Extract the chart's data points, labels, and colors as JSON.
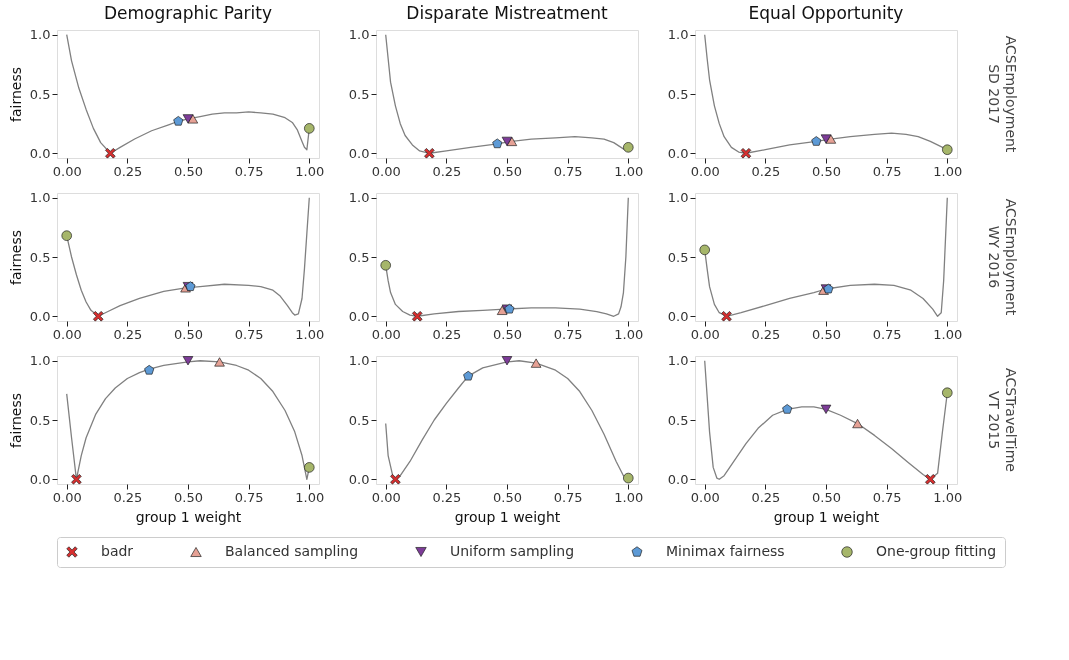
{
  "chart_data": [
    {
      "type": "line",
      "title": "Demographic Parity",
      "ylabel": "fairness",
      "xlim": [
        -0.04,
        1.04
      ],
      "ylim": [
        -0.04,
        1.04
      ],
      "xticks": [
        {
          "value": 0,
          "label": "0.00"
        },
        {
          "value": 0.25,
          "label": "0.25"
        },
        {
          "value": 0.5,
          "label": "0.50"
        },
        {
          "value": 0.75,
          "label": "0.75"
        },
        {
          "value": 1,
          "label": "1.00"
        }
      ],
      "yticks": [
        {
          "value": 0,
          "label": "0.0"
        },
        {
          "value": 0.5,
          "label": "0.5"
        },
        {
          "value": 1,
          "label": "1.0"
        }
      ],
      "legend": "bottom",
      "series": [
        {
          "color": "#808080",
          "x": [
            0,
            0.02,
            0.05,
            0.08,
            0.11,
            0.14,
            0.18,
            0.22,
            0.28,
            0.35,
            0.42,
            0.46,
            0.5,
            0.55,
            0.6,
            0.65,
            0.7,
            0.75,
            0.8,
            0.85,
            0.9,
            0.93,
            0.95,
            0.97,
            0.98,
            0.99,
            1.0
          ],
          "values": [
            1.0,
            0.78,
            0.55,
            0.37,
            0.21,
            0.09,
            0.0,
            0.05,
            0.12,
            0.19,
            0.24,
            0.27,
            0.29,
            0.31,
            0.33,
            0.34,
            0.34,
            0.35,
            0.34,
            0.33,
            0.3,
            0.26,
            0.2,
            0.1,
            0.05,
            0.03,
            0.21
          ]
        },
        {
          "name": "badr",
          "type": "scatter",
          "marker": "cross",
          "color": "#d62f2f",
          "x": [
            0.18
          ],
          "values": [
            0.0
          ]
        },
        {
          "name": "Balanced sampling",
          "type": "scatter",
          "marker": "triangle",
          "color": "#e6a195",
          "x": [
            0.52
          ],
          "values": [
            0.29
          ]
        },
        {
          "name": "Uniform sampling",
          "type": "scatter",
          "marker": "triangle-down",
          "color": "#7d3c98",
          "x": [
            0.5
          ],
          "values": [
            0.29
          ]
        },
        {
          "name": "Minimax fairness",
          "type": "scatter",
          "color": "#5d9ad6",
          "x": [
            0.46
          ],
          "values": [
            0.27
          ]
        },
        {
          "name": "One-group fitting",
          "type": "scatter",
          "marker": "circle",
          "color": "#a6b66a",
          "x": [
            1.0
          ],
          "values": [
            0.21
          ]
        }
      ]
    },
    {
      "type": "line",
      "title": "Disparate Mistreatment",
      "xlim": [
        -0.04,
        1.04
      ],
      "ylim": [
        -0.04,
        1.04
      ],
      "xticks": [
        {
          "value": 0,
          "label": "0.00"
        },
        {
          "value": 0.25,
          "label": "0.25"
        },
        {
          "value": 0.5,
          "label": "0.50"
        },
        {
          "value": 0.75,
          "label": "0.75"
        },
        {
          "value": 1,
          "label": "1.00"
        }
      ],
      "yticks": [
        {
          "value": 0,
          "label": "0.0"
        },
        {
          "value": 0.5,
          "label": "0.5"
        },
        {
          "value": 1,
          "label": "1.0"
        }
      ],
      "legend": "bottom",
      "series": [
        {
          "color": "#808080",
          "x": [
            0,
            0.01,
            0.02,
            0.04,
            0.06,
            0.08,
            0.11,
            0.14,
            0.18,
            0.25,
            0.35,
            0.46,
            0.52,
            0.6,
            0.7,
            0.78,
            0.85,
            0.9,
            0.94,
            0.97,
            0.985,
            1.0
          ],
          "values": [
            1.0,
            0.8,
            0.6,
            0.4,
            0.25,
            0.15,
            0.07,
            0.02,
            0.0,
            0.02,
            0.05,
            0.08,
            0.1,
            0.12,
            0.13,
            0.14,
            0.13,
            0.12,
            0.09,
            0.05,
            0.03,
            0.05
          ]
        },
        {
          "name": "badr",
          "type": "scatter",
          "marker": "cross",
          "color": "#d62f2f",
          "x": [
            0.18
          ],
          "values": [
            0.0
          ]
        },
        {
          "name": "Balanced sampling",
          "type": "scatter",
          "marker": "triangle",
          "color": "#e6a195",
          "x": [
            0.52
          ],
          "values": [
            0.1
          ]
        },
        {
          "name": "Uniform sampling",
          "type": "scatter",
          "marker": "triangle-down",
          "color": "#7d3c98",
          "x": [
            0.5
          ],
          "values": [
            0.1
          ]
        },
        {
          "name": "Minimax fairness",
          "type": "scatter",
          "color": "#5d9ad6",
          "x": [
            0.46
          ],
          "values": [
            0.08
          ]
        },
        {
          "name": "One-group fitting",
          "type": "scatter",
          "marker": "circle",
          "color": "#a6b66a",
          "x": [
            1.0
          ],
          "values": [
            0.05
          ]
        }
      ]
    },
    {
      "type": "line",
      "title": "Equal Opportunity",
      "annotations": [
        "ACSEmployment",
        "SD 2017"
      ],
      "xlim": [
        -0.04,
        1.04
      ],
      "ylim": [
        -0.04,
        1.04
      ],
      "xticks": [
        {
          "value": 0,
          "label": "0.00"
        },
        {
          "value": 0.25,
          "label": "0.25"
        },
        {
          "value": 0.5,
          "label": "0.50"
        },
        {
          "value": 0.75,
          "label": "0.75"
        },
        {
          "value": 1,
          "label": "1.00"
        }
      ],
      "yticks": [
        {
          "value": 0,
          "label": "0.0"
        },
        {
          "value": 0.5,
          "label": "0.5"
        },
        {
          "value": 1,
          "label": "1.0"
        }
      ],
      "legend": "bottom",
      "series": [
        {
          "color": "#808080",
          "x": [
            0,
            0.01,
            0.02,
            0.04,
            0.06,
            0.08,
            0.11,
            0.14,
            0.17,
            0.25,
            0.35,
            0.46,
            0.52,
            0.6,
            0.7,
            0.77,
            0.83,
            0.88,
            0.93,
            0.97,
            1.0
          ],
          "values": [
            1.0,
            0.8,
            0.62,
            0.4,
            0.25,
            0.14,
            0.05,
            0.01,
            0.0,
            0.03,
            0.07,
            0.1,
            0.12,
            0.14,
            0.16,
            0.17,
            0.16,
            0.14,
            0.1,
            0.06,
            0.03
          ]
        },
        {
          "name": "badr",
          "type": "scatter",
          "marker": "cross",
          "color": "#d62f2f",
          "x": [
            0.17
          ],
          "values": [
            0.0
          ]
        },
        {
          "name": "Balanced sampling",
          "type": "scatter",
          "marker": "triangle",
          "color": "#e6a195",
          "x": [
            0.52
          ],
          "values": [
            0.12
          ]
        },
        {
          "name": "Uniform sampling",
          "type": "scatter",
          "marker": "triangle-down",
          "color": "#7d3c98",
          "x": [
            0.5
          ],
          "values": [
            0.12
          ]
        },
        {
          "name": "Minimax fairness",
          "type": "scatter",
          "color": "#5d9ad6",
          "x": [
            0.46
          ],
          "values": [
            0.1
          ]
        },
        {
          "name": "One-group fitting",
          "type": "scatter",
          "marker": "circle",
          "color": "#a6b66a",
          "x": [
            1.0
          ],
          "values": [
            0.03
          ]
        }
      ]
    },
    {
      "type": "line",
      "ylabel": "fairness",
      "xlim": [
        -0.04,
        1.04
      ],
      "ylim": [
        -0.04,
        1.04
      ],
      "xticks": [
        {
          "value": 0,
          "label": "0.00"
        },
        {
          "value": 0.25,
          "label": "0.25"
        },
        {
          "value": 0.5,
          "label": "0.50"
        },
        {
          "value": 0.75,
          "label": "0.75"
        },
        {
          "value": 1,
          "label": "1.00"
        }
      ],
      "yticks": [
        {
          "value": 0,
          "label": "0.0"
        },
        {
          "value": 0.5,
          "label": "0.5"
        },
        {
          "value": 1,
          "label": "1.0"
        }
      ],
      "legend": "bottom",
      "series": [
        {
          "color": "#808080",
          "x": [
            0,
            0.02,
            0.04,
            0.06,
            0.08,
            0.1,
            0.13,
            0.17,
            0.22,
            0.3,
            0.4,
            0.49,
            0.55,
            0.65,
            0.75,
            0.8,
            0.85,
            0.88,
            0.91,
            0.93,
            0.94,
            0.955,
            0.97,
            0.98,
            0.99,
            1.0
          ],
          "values": [
            0.68,
            0.5,
            0.35,
            0.22,
            0.12,
            0.05,
            0.0,
            0.04,
            0.09,
            0.15,
            0.21,
            0.24,
            0.25,
            0.27,
            0.26,
            0.25,
            0.22,
            0.17,
            0.09,
            0.03,
            0.01,
            0.02,
            0.15,
            0.4,
            0.7,
            1.0
          ]
        },
        {
          "name": "badr",
          "type": "scatter",
          "marker": "cross",
          "color": "#d62f2f",
          "x": [
            0.13
          ],
          "values": [
            0.0
          ]
        },
        {
          "name": "Balanced sampling",
          "type": "scatter",
          "marker": "triangle",
          "color": "#e6a195",
          "x": [
            0.49
          ],
          "values": [
            0.24
          ]
        },
        {
          "name": "Uniform sampling",
          "type": "scatter",
          "marker": "triangle-down",
          "color": "#7d3c98",
          "x": [
            0.5
          ],
          "values": [
            0.25
          ]
        },
        {
          "name": "Minimax fairness",
          "type": "scatter",
          "color": "#5d9ad6",
          "x": [
            0.51
          ],
          "values": [
            0.25
          ]
        },
        {
          "name": "One-group fitting",
          "type": "scatter",
          "marker": "circle",
          "color": "#a6b66a",
          "x": [
            0.0
          ],
          "values": [
            0.68
          ]
        }
      ]
    },
    {
      "type": "line",
      "xlim": [
        -0.04,
        1.04
      ],
      "ylim": [
        -0.04,
        1.04
      ],
      "xticks": [
        {
          "value": 0,
          "label": "0.00"
        },
        {
          "value": 0.25,
          "label": "0.25"
        },
        {
          "value": 0.5,
          "label": "0.50"
        },
        {
          "value": 0.75,
          "label": "0.75"
        },
        {
          "value": 1,
          "label": "1.00"
        }
      ],
      "yticks": [
        {
          "value": 0,
          "label": "0.0"
        },
        {
          "value": 0.5,
          "label": "0.5"
        },
        {
          "value": 1,
          "label": "1.0"
        }
      ],
      "legend": "bottom",
      "series": [
        {
          "color": "#808080",
          "x": [
            0,
            0.01,
            0.02,
            0.04,
            0.07,
            0.1,
            0.13,
            0.2,
            0.3,
            0.4,
            0.49,
            0.6,
            0.7,
            0.8,
            0.87,
            0.91,
            0.94,
            0.96,
            0.97,
            0.98,
            0.99,
            1.0
          ],
          "values": [
            0.43,
            0.3,
            0.2,
            0.1,
            0.04,
            0.01,
            0.0,
            0.02,
            0.04,
            0.05,
            0.06,
            0.07,
            0.07,
            0.06,
            0.04,
            0.02,
            0.0,
            0.02,
            0.08,
            0.2,
            0.5,
            1.0
          ]
        },
        {
          "name": "badr",
          "type": "scatter",
          "marker": "cross",
          "color": "#d62f2f",
          "x": [
            0.13
          ],
          "values": [
            0.0
          ]
        },
        {
          "name": "Balanced sampling",
          "type": "scatter",
          "marker": "triangle",
          "color": "#e6a195",
          "x": [
            0.48
          ],
          "values": [
            0.05
          ]
        },
        {
          "name": "Uniform sampling",
          "type": "scatter",
          "marker": "triangle-down",
          "color": "#7d3c98",
          "x": [
            0.5
          ],
          "values": [
            0.06
          ]
        },
        {
          "name": "Minimax fairness",
          "type": "scatter",
          "color": "#5d9ad6",
          "x": [
            0.51
          ],
          "values": [
            0.06
          ]
        },
        {
          "name": "One-group fitting",
          "type": "scatter",
          "marker": "circle",
          "color": "#a6b66a",
          "x": [
            0.0
          ],
          "values": [
            0.43
          ]
        }
      ]
    },
    {
      "type": "line",
      "annotations": [
        "ACSEmployment",
        "WY 2016"
      ],
      "xlim": [
        -0.04,
        1.04
      ],
      "ylim": [
        -0.04,
        1.04
      ],
      "xticks": [
        {
          "value": 0,
          "label": "0.00"
        },
        {
          "value": 0.25,
          "label": "0.25"
        },
        {
          "value": 0.5,
          "label": "0.50"
        },
        {
          "value": 0.75,
          "label": "0.75"
        },
        {
          "value": 1,
          "label": "1.00"
        }
      ],
      "yticks": [
        {
          "value": 0,
          "label": "0.0"
        },
        {
          "value": 0.5,
          "label": "0.5"
        },
        {
          "value": 1,
          "label": "1.0"
        }
      ],
      "legend": "bottom",
      "series": [
        {
          "color": "#808080",
          "x": [
            0,
            0.01,
            0.02,
            0.04,
            0.06,
            0.09,
            0.15,
            0.25,
            0.35,
            0.45,
            0.5,
            0.6,
            0.7,
            0.78,
            0.85,
            0.9,
            0.94,
            0.96,
            0.975,
            0.985,
            1.0
          ],
          "values": [
            0.56,
            0.4,
            0.25,
            0.1,
            0.03,
            0.0,
            0.03,
            0.09,
            0.15,
            0.2,
            0.23,
            0.26,
            0.27,
            0.26,
            0.22,
            0.15,
            0.06,
            0.0,
            0.03,
            0.3,
            1.0
          ]
        },
        {
          "name": "badr",
          "type": "scatter",
          "marker": "cross",
          "color": "#d62f2f",
          "x": [
            0.09
          ],
          "values": [
            0.0
          ]
        },
        {
          "name": "Balanced sampling",
          "type": "scatter",
          "marker": "triangle",
          "color": "#e6a195",
          "x": [
            0.49
          ],
          "values": [
            0.22
          ]
        },
        {
          "name": "Uniform sampling",
          "type": "scatter",
          "marker": "triangle-down",
          "color": "#7d3c98",
          "x": [
            0.5
          ],
          "values": [
            0.23
          ]
        },
        {
          "name": "Minimax fairness",
          "type": "scatter",
          "color": "#5d9ad6",
          "x": [
            0.51
          ],
          "values": [
            0.23
          ]
        },
        {
          "name": "One-group fitting",
          "type": "scatter",
          "marker": "circle",
          "color": "#a6b66a",
          "x": [
            0.0
          ],
          "values": [
            0.56
          ]
        }
      ]
    },
    {
      "type": "line",
      "ylabel": "fairness",
      "xlabel": "group 1 weight",
      "xlim": [
        -0.04,
        1.04
      ],
      "ylim": [
        -0.04,
        1.04
      ],
      "xticks": [
        {
          "value": 0,
          "label": "0.00"
        },
        {
          "value": 0.25,
          "label": "0.25"
        },
        {
          "value": 0.5,
          "label": "0.50"
        },
        {
          "value": 0.75,
          "label": "0.75"
        },
        {
          "value": 1,
          "label": "1.00"
        }
      ],
      "yticks": [
        {
          "value": 0,
          "label": "0.0"
        },
        {
          "value": 0.5,
          "label": "0.5"
        },
        {
          "value": 1,
          "label": "1.0"
        }
      ],
      "legend": "bottom",
      "series": [
        {
          "color": "#808080",
          "x": [
            0,
            0.02,
            0.04,
            0.06,
            0.08,
            0.12,
            0.16,
            0.2,
            0.25,
            0.3,
            0.34,
            0.4,
            0.5,
            0.55,
            0.63,
            0.7,
            0.75,
            0.8,
            0.85,
            0.9,
            0.94,
            0.97,
            0.99,
            1.0
          ],
          "values": [
            0.72,
            0.35,
            0.0,
            0.2,
            0.35,
            0.55,
            0.68,
            0.77,
            0.85,
            0.9,
            0.93,
            0.96,
            0.99,
            1.0,
            0.99,
            0.96,
            0.92,
            0.85,
            0.74,
            0.58,
            0.4,
            0.2,
            0.0,
            0.1
          ]
        },
        {
          "name": "badr",
          "type": "scatter",
          "marker": "cross",
          "color": "#d62f2f",
          "x": [
            0.04
          ],
          "values": [
            0.0
          ]
        },
        {
          "name": "Balanced sampling",
          "type": "scatter",
          "marker": "triangle",
          "color": "#e6a195",
          "x": [
            0.63
          ],
          "values": [
            0.99
          ]
        },
        {
          "name": "Uniform sampling",
          "type": "scatter",
          "marker": "triangle-down",
          "color": "#7d3c98",
          "x": [
            0.5
          ],
          "values": [
            1.0
          ]
        },
        {
          "name": "Minimax fairness",
          "type": "scatter",
          "color": "#5d9ad6",
          "x": [
            0.34
          ],
          "values": [
            0.92
          ]
        },
        {
          "name": "One-group fitting",
          "type": "scatter",
          "marker": "circle",
          "color": "#a6b66a",
          "x": [
            1.0
          ],
          "values": [
            0.1
          ]
        }
      ]
    },
    {
      "type": "line",
      "xlabel": "group 1 weight",
      "xlim": [
        -0.04,
        1.04
      ],
      "ylim": [
        -0.04,
        1.04
      ],
      "xticks": [
        {
          "value": 0,
          "label": "0.00"
        },
        {
          "value": 0.25,
          "label": "0.25"
        },
        {
          "value": 0.5,
          "label": "0.50"
        },
        {
          "value": 0.75,
          "label": "0.75"
        },
        {
          "value": 1,
          "label": "1.00"
        }
      ],
      "yticks": [
        {
          "value": 0,
          "label": "0.0"
        },
        {
          "value": 0.5,
          "label": "0.5"
        },
        {
          "value": 1,
          "label": "1.0"
        }
      ],
      "legend": "bottom",
      "series": [
        {
          "color": "#808080",
          "x": [
            0,
            0.01,
            0.03,
            0.04,
            0.06,
            0.1,
            0.15,
            0.2,
            0.25,
            0.3,
            0.34,
            0.4,
            0.5,
            0.55,
            0.62,
            0.7,
            0.75,
            0.8,
            0.85,
            0.9,
            0.95,
            0.98,
            1.0
          ],
          "values": [
            0.47,
            0.2,
            0.02,
            0.0,
            0.03,
            0.15,
            0.33,
            0.5,
            0.64,
            0.77,
            0.87,
            0.94,
            0.99,
            1.0,
            0.98,
            0.92,
            0.85,
            0.74,
            0.58,
            0.38,
            0.15,
            0.03,
            0.01
          ]
        },
        {
          "name": "badr",
          "type": "scatter",
          "marker": "cross",
          "color": "#d62f2f",
          "x": [
            0.04
          ],
          "values": [
            0.0
          ]
        },
        {
          "name": "Balanced sampling",
          "type": "scatter",
          "marker": "triangle",
          "color": "#e6a195",
          "x": [
            0.62
          ],
          "values": [
            0.98
          ]
        },
        {
          "name": "Uniform sampling",
          "type": "scatter",
          "marker": "triangle-down",
          "color": "#7d3c98",
          "x": [
            0.5
          ],
          "values": [
            1.0
          ]
        },
        {
          "name": "Minimax fairness",
          "type": "scatter",
          "color": "#5d9ad6",
          "x": [
            0.34
          ],
          "values": [
            0.87
          ]
        },
        {
          "name": "One-group fitting",
          "type": "scatter",
          "marker": "circle",
          "color": "#a6b66a",
          "x": [
            1.0
          ],
          "values": [
            0.01
          ]
        }
      ]
    },
    {
      "type": "line",
      "xlabel": "group 1 weight",
      "annotations": [
        "ACSTravelTime",
        "VT 2015"
      ],
      "xlim": [
        -0.04,
        1.04
      ],
      "ylim": [
        -0.04,
        1.04
      ],
      "xticks": [
        {
          "value": 0,
          "label": "0.00"
        },
        {
          "value": 0.25,
          "label": "0.25"
        },
        {
          "value": 0.5,
          "label": "0.50"
        },
        {
          "value": 0.75,
          "label": "0.75"
        },
        {
          "value": 1,
          "label": "1.00"
        }
      ],
      "yticks": [
        {
          "value": 0,
          "label": "0.0"
        },
        {
          "value": 0.5,
          "label": "0.5"
        },
        {
          "value": 1,
          "label": "1.0"
        }
      ],
      "legend": "bottom",
      "series": [
        {
          "color": "#808080",
          "x": [
            0,
            0.01,
            0.02,
            0.035,
            0.05,
            0.06,
            0.08,
            0.12,
            0.17,
            0.22,
            0.28,
            0.34,
            0.4,
            0.45,
            0.5,
            0.56,
            0.63,
            0.7,
            0.77,
            0.84,
            0.9,
            0.93,
            0.96,
            0.98,
            1.0
          ],
          "values": [
            1.0,
            0.7,
            0.4,
            0.1,
            0.01,
            0.0,
            0.03,
            0.15,
            0.3,
            0.43,
            0.54,
            0.59,
            0.61,
            0.61,
            0.59,
            0.54,
            0.47,
            0.37,
            0.26,
            0.14,
            0.04,
            0.0,
            0.05,
            0.4,
            0.73
          ]
        },
        {
          "name": "badr",
          "type": "scatter",
          "marker": "cross",
          "color": "#d62f2f",
          "x": [
            0.93
          ],
          "values": [
            0.0
          ]
        },
        {
          "name": "Balanced sampling",
          "type": "scatter",
          "marker": "triangle",
          "color": "#e6a195",
          "x": [
            0.63
          ],
          "values": [
            0.47
          ]
        },
        {
          "name": "Uniform sampling",
          "type": "scatter",
          "marker": "triangle-down",
          "color": "#7d3c98",
          "x": [
            0.5
          ],
          "values": [
            0.59
          ]
        },
        {
          "name": "Minimax fairness",
          "type": "scatter",
          "color": "#5d9ad6",
          "x": [
            0.34
          ],
          "values": [
            0.59
          ]
        },
        {
          "name": "One-group fitting",
          "type": "scatter",
          "marker": "circle",
          "color": "#a6b66a",
          "x": [
            1.0
          ],
          "values": [
            0.73
          ]
        }
      ]
    }
  ]
}
